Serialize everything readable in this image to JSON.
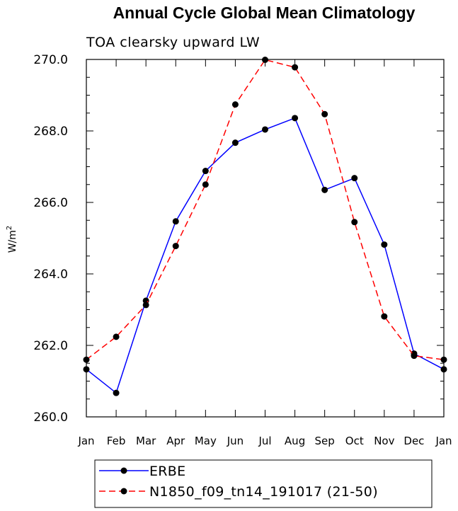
{
  "chart_data": {
    "type": "line",
    "title": "Annual Cycle Global Mean Climatology",
    "subtitle": "TOA clearsky upward LW",
    "ylabel": "W/m",
    "ylabel_sup": "2",
    "xlabel": "",
    "ylim": [
      260.0,
      270.0
    ],
    "yticks": [
      260.0,
      262.0,
      264.0,
      266.0,
      268.0,
      270.0
    ],
    "ytick_labels": [
      "260.0",
      "262.0",
      "264.0",
      "266.0",
      "268.0",
      "270.0"
    ],
    "categories": [
      "Jan",
      "Feb",
      "Mar",
      "Apr",
      "May",
      "Jun",
      "Jul",
      "Aug",
      "Sep",
      "Oct",
      "Nov",
      "Dec",
      "Jan"
    ],
    "grid": false,
    "legend_position": "bottom",
    "series": [
      {
        "name": "ERBE",
        "color": "#0000ff",
        "line_style": "solid",
        "marker": "filled-circle",
        "values": [
          261.33,
          260.67,
          263.25,
          265.47,
          266.88,
          267.67,
          268.04,
          268.36,
          266.35,
          266.68,
          264.82,
          261.77,
          261.33
        ]
      },
      {
        "name": "N1850_f09_tn14_191017 (21-50)",
        "color": "#ff0000",
        "line_style": "dashed",
        "marker": "filled-circle",
        "values": [
          261.6,
          262.24,
          263.13,
          264.78,
          266.5,
          268.74,
          269.99,
          269.78,
          268.47,
          265.45,
          262.81,
          261.71,
          261.6
        ]
      }
    ]
  }
}
